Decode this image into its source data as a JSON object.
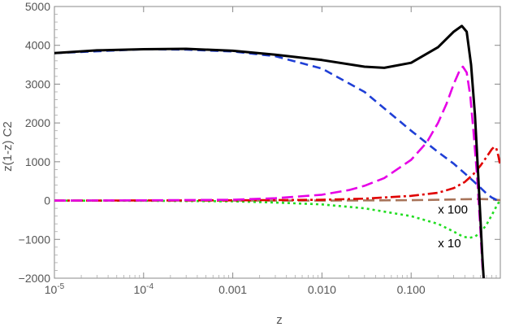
{
  "chart_data": {
    "type": "line",
    "title": "",
    "xlabel": "z",
    "ylabel": "z(1-z) C2",
    "xscale": "log",
    "xlim": [
      1e-05,
      1.0
    ],
    "ylim": [
      -2000,
      5000
    ],
    "x_ticks": [
      {
        "value": 1e-05,
        "base": "10",
        "exp": "-5"
      },
      {
        "value": 0.0001,
        "base": "10",
        "exp": "-4"
      },
      {
        "value": 0.001,
        "label": "0.001"
      },
      {
        "value": 0.01,
        "label": "0.010"
      },
      {
        "value": 0.1,
        "label": "0.100"
      }
    ],
    "y_ticks": [
      {
        "value": -2000,
        "label": "−2000"
      },
      {
        "value": -1000,
        "label": "−1000"
      },
      {
        "value": 0,
        "label": "0"
      },
      {
        "value": 1000,
        "label": "1000"
      },
      {
        "value": 2000,
        "label": "2000"
      },
      {
        "value": 3000,
        "label": "3000"
      },
      {
        "value": 4000,
        "label": "4000"
      },
      {
        "value": 5000,
        "label": "5000"
      }
    ],
    "series": [
      {
        "name": "total",
        "color": "#000000",
        "dash": "solid",
        "x": [
          1e-05,
          3e-05,
          0.0001,
          0.0003,
          0.001,
          0.003,
          0.01,
          0.03,
          0.05,
          0.1,
          0.2,
          0.3,
          0.37,
          0.42,
          0.47,
          0.52,
          0.56,
          0.6,
          0.63,
          0.65,
          0.66
        ],
        "y": [
          3800,
          3870,
          3900,
          3910,
          3860,
          3760,
          3620,
          3450,
          3420,
          3550,
          3950,
          4350,
          4500,
          4350,
          3500,
          2200,
          800,
          -500,
          -1500,
          -2000,
          -2000
        ]
      },
      {
        "name": "blue dashed",
        "color": "#1f3fd6",
        "dash": "10,6",
        "x": [
          1e-05,
          0.0001,
          0.0003,
          0.001,
          0.003,
          0.01,
          0.03,
          0.1,
          0.2,
          0.3,
          0.4,
          0.5,
          0.6,
          0.7,
          0.8,
          0.9,
          1.0
        ],
        "y": [
          3800,
          3900,
          3890,
          3840,
          3720,
          3400,
          2800,
          1800,
          1250,
          950,
          700,
          500,
          330,
          180,
          80,
          20,
          0
        ]
      },
      {
        "name": "magenta dashed",
        "color": "#e600e6",
        "dash": "14,6",
        "x": [
          1e-05,
          0.0001,
          0.001,
          0.003,
          0.01,
          0.02,
          0.03,
          0.05,
          0.1,
          0.15,
          0.2,
          0.25,
          0.3,
          0.35,
          0.38,
          0.42,
          0.46,
          0.5,
          0.55,
          0.6,
          0.63,
          0.65
        ],
        "y": [
          0,
          5,
          20,
          60,
          150,
          270,
          380,
          580,
          1050,
          1500,
          2000,
          2500,
          3000,
          3350,
          3450,
          3300,
          2700,
          1800,
          600,
          -800,
          -1700,
          -2000
        ]
      },
      {
        "name": "red dash-dot",
        "color": "#e00000",
        "dash": "12,4,3,4",
        "x": [
          1e-05,
          0.001,
          0.01,
          0.03,
          0.1,
          0.2,
          0.3,
          0.4,
          0.5,
          0.6,
          0.7,
          0.8,
          0.85,
          0.9,
          0.95,
          1.0
        ],
        "y": [
          0,
          5,
          20,
          50,
          120,
          200,
          320,
          480,
          680,
          900,
          1120,
          1320,
          1380,
          1350,
          1150,
          900
        ]
      },
      {
        "name": "x 10 green dotted",
        "color": "#22dd22",
        "dash": "3,4",
        "x": [
          1e-05,
          0.0001,
          0.001,
          0.003,
          0.01,
          0.03,
          0.1,
          0.2,
          0.3,
          0.38,
          0.45,
          0.52,
          0.6,
          0.7,
          0.8,
          0.88,
          0.94,
          1.0
        ],
        "y": [
          0,
          -5,
          -20,
          -50,
          -100,
          -200,
          -400,
          -600,
          -800,
          -930,
          -960,
          -930,
          -820,
          -620,
          -380,
          -200,
          -80,
          0
        ]
      },
      {
        "name": "x 100 brown dashed",
        "color": "#a8745a",
        "dash": "14,6",
        "x": [
          1e-05,
          0.001,
          0.01,
          0.1,
          0.2,
          0.4,
          0.6,
          0.8,
          1.0
        ],
        "y": [
          0,
          0,
          0,
          10,
          20,
          35,
          40,
          30,
          10
        ]
      }
    ],
    "annotations": [
      {
        "text": "x 100",
        "x": 0.2,
        "y": -330
      },
      {
        "text": "x 10",
        "x": 0.2,
        "y": -1200
      }
    ]
  }
}
